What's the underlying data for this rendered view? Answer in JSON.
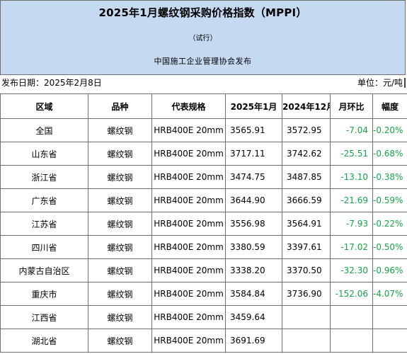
{
  "header": {
    "title": "2025年1月螺纹钢采购价格指数（MPPI）",
    "subtitle": "（试行）",
    "publisher": "中国施工企业管理协会发布"
  },
  "meta": {
    "release_date": "发布日期：2025年2月8日",
    "unit": "单位：元/吨"
  },
  "table": {
    "columns": [
      "区域",
      "品种",
      "代表规格",
      "2025年1月",
      "2024年12月",
      "月环比",
      "幅度"
    ],
    "rows": [
      {
        "region": "全国",
        "variety": "螺纹钢",
        "spec": "HRB400E 20mm",
        "jan2025": "3565.91",
        "dec2024": "3572.95",
        "mom": "-7.04",
        "pct": "-0.20%"
      },
      {
        "region": "山东省",
        "variety": "螺纹钢",
        "spec": "HRB400E 20mm",
        "jan2025": "3717.11",
        "dec2024": "3742.62",
        "mom": "-25.51",
        "pct": "-0.68%"
      },
      {
        "region": "浙江省",
        "variety": "螺纹钢",
        "spec": "HRB400E 20mm",
        "jan2025": "3474.75",
        "dec2024": "3487.85",
        "mom": "-13.10",
        "pct": "-0.38%"
      },
      {
        "region": "广东省",
        "variety": "螺纹钢",
        "spec": "HRB400E 20mm",
        "jan2025": "3644.90",
        "dec2024": "3666.59",
        "mom": "-21.69",
        "pct": "-0.59%"
      },
      {
        "region": "江苏省",
        "variety": "螺纹钢",
        "spec": "HRB400E 20mm",
        "jan2025": "3556.98",
        "dec2024": "3564.91",
        "mom": "-7.93",
        "pct": "-0.22%"
      },
      {
        "region": "四川省",
        "variety": "螺纹钢",
        "spec": "HRB400E 20mm",
        "jan2025": "3380.59",
        "dec2024": "3397.61",
        "mom": "-17.02",
        "pct": "-0.50%"
      },
      {
        "region": "内蒙古自治区",
        "variety": "螺纹钢",
        "spec": "HRB400E 20mm",
        "jan2025": "3338.20",
        "dec2024": "3370.50",
        "mom": "-32.30",
        "pct": "-0.96%"
      },
      {
        "region": "重庆市",
        "variety": "螺纹钢",
        "spec": "HRB400E 20mm",
        "jan2025": "3584.84",
        "dec2024": "3736.90",
        "mom": "-152.06",
        "pct": "-4.07%"
      },
      {
        "region": "江西省",
        "variety": "螺纹钢",
        "spec": "HRB400E 20mm",
        "jan2025": "3459.64",
        "dec2024": "",
        "mom": "",
        "pct": ""
      },
      {
        "region": "湖北省",
        "variety": "螺纹钢",
        "spec": "HRB400E 20mm",
        "jan2025": "3691.69",
        "dec2024": "",
        "mom": "",
        "pct": ""
      }
    ]
  },
  "colors": {
    "header_bg": "#c5d9f1",
    "negative_change": "#16a34a",
    "grid": "#6f6f6f"
  }
}
